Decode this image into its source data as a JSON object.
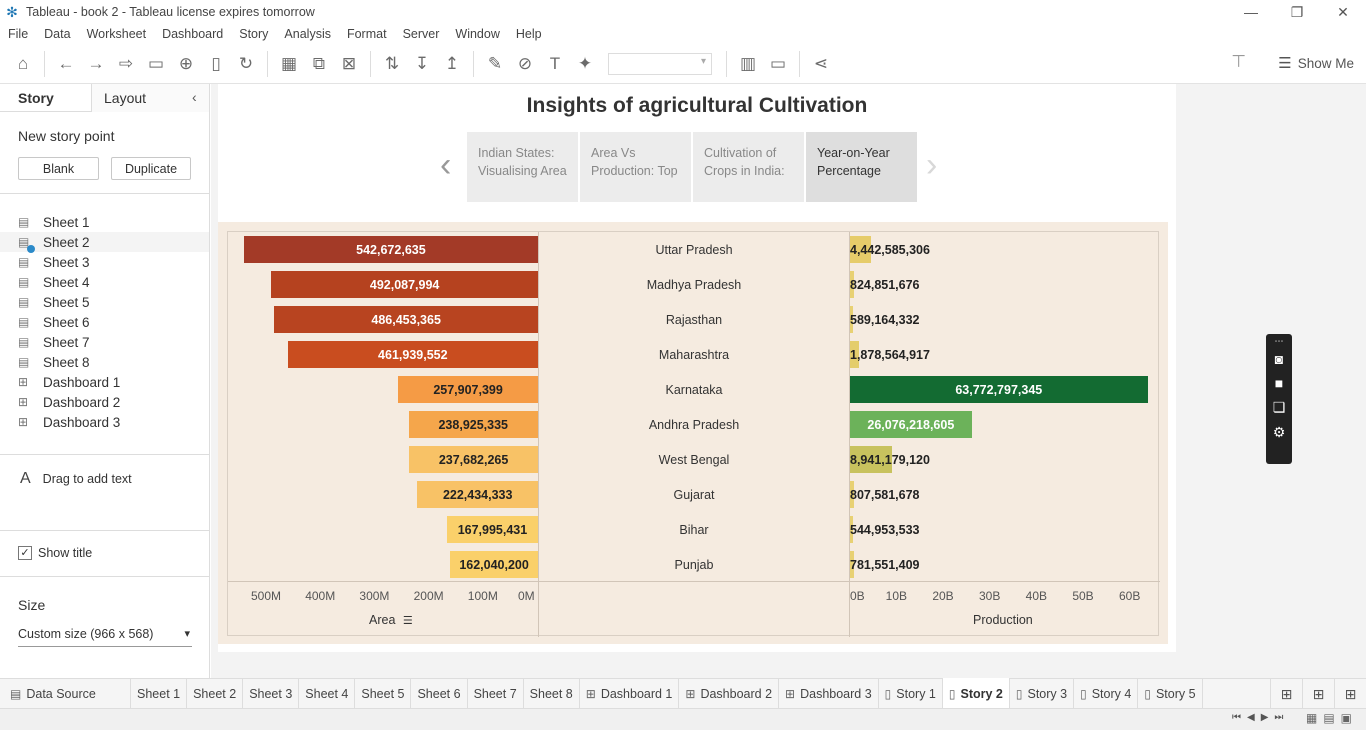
{
  "window": {
    "title": "Tableau - book 2 - Tableau license expires tomorrow"
  },
  "menu": [
    "File",
    "Data",
    "Worksheet",
    "Dashboard",
    "Story",
    "Analysis",
    "Format",
    "Server",
    "Window",
    "Help"
  ],
  "toolbar": {
    "show_me": "Show Me"
  },
  "sidebar": {
    "tab_story": "Story",
    "tab_layout": "Layout",
    "new_story_point": "New story point",
    "blank_button": "Blank",
    "duplicate_button": "Duplicate",
    "sheets": [
      {
        "label": "Sheet 1",
        "type": "sheet"
      },
      {
        "label": "Sheet 2",
        "type": "sheet",
        "selected": true
      },
      {
        "label": "Sheet 3",
        "type": "sheet"
      },
      {
        "label": "Sheet 4",
        "type": "sheet"
      },
      {
        "label": "Sheet 5",
        "type": "sheet"
      },
      {
        "label": "Sheet 6",
        "type": "sheet"
      },
      {
        "label": "Sheet 7",
        "type": "sheet"
      },
      {
        "label": "Sheet 8",
        "type": "sheet"
      },
      {
        "label": "Dashboard 1",
        "type": "dashboard"
      },
      {
        "label": "Dashboard 2",
        "type": "dashboard"
      },
      {
        "label": "Dashboard 3",
        "type": "dashboard"
      }
    ],
    "drag_text": "Drag to add text",
    "show_title": "Show title",
    "size_label": "Size",
    "size_value": "Custom size (966 x 568)"
  },
  "story": {
    "title": "Insights of agricultural Cultivation",
    "points": [
      {
        "line1": "Indian States:",
        "line2": "Visualising Area"
      },
      {
        "line1": "Area Vs",
        "line2": "Production: Top"
      },
      {
        "line1": "Cultivation of",
        "line2": "Crops in India:"
      },
      {
        "line1": "Year-on-Year",
        "line2": "Percentage",
        "active": true
      }
    ]
  },
  "chart_data": {
    "type": "bar",
    "categories": [
      "Uttar Pradesh",
      "Madhya Pradesh",
      "Rajasthan",
      "Maharashtra",
      "Karnataka",
      "Andhra Pradesh",
      "West Bengal",
      "Gujarat",
      "Bihar",
      "Punjab"
    ],
    "series": [
      {
        "name": "Area",
        "values": [
          542672635,
          492087994,
          486453365,
          461939552,
          257907399,
          238925335,
          237682265,
          222434333,
          167995431,
          162040200
        ],
        "labels": [
          "542,672,635",
          "492,087,994",
          "486,453,365",
          "461,939,552",
          "257,907,399",
          "238,925,335",
          "237,682,265",
          "222,434,333",
          "167,995,431",
          "162,040,200"
        ],
        "colors": [
          "#a33a27",
          "#b5421f",
          "#b84420",
          "#c94d1f",
          "#f59b45",
          "#f5a64b",
          "#f8c266",
          "#f8c266",
          "#fad06a",
          "#fad06a"
        ]
      },
      {
        "name": "Production",
        "values": [
          4442585306,
          824851676,
          589164332,
          1878564917,
          63772797345,
          26076218605,
          8941179120,
          807581678,
          544953533,
          781551409
        ],
        "labels": [
          "4,442,585,306",
          "824,851,676",
          "589,164,332",
          "1,878,564,917",
          "63,772,797,345",
          "26,076,218,605",
          "8,941,179,120",
          "807,581,678",
          "544,953,533",
          "781,551,409"
        ],
        "colors": [
          "#e6cc6a",
          "#e8d173",
          "#e8d173",
          "#e4cd6c",
          "#136b32",
          "#6cb25a",
          "#c8c25e",
          "#e8d173",
          "#e8d173",
          "#e8d173"
        ]
      }
    ],
    "area_axis": {
      "title": "Area",
      "range": [
        0,
        550000000
      ],
      "ticks": [
        "500M",
        "400M",
        "300M",
        "200M",
        "100M",
        "0M"
      ],
      "tick_values": [
        500000000,
        400000000,
        300000000,
        200000000,
        100000000,
        0
      ],
      "reversed": true
    },
    "production_axis": {
      "title": "Production",
      "range": [
        0,
        64000000000
      ],
      "ticks": [
        "0B",
        "10B",
        "20B",
        "30B",
        "40B",
        "50B",
        "60B"
      ],
      "tick_values": [
        0,
        10000000000,
        20000000000,
        30000000000,
        40000000000,
        50000000000,
        60000000000
      ]
    }
  },
  "bottom_tabs": [
    {
      "label": "Data Source",
      "icon": "database-icon"
    },
    {
      "label": "Sheet 1"
    },
    {
      "label": "Sheet 2"
    },
    {
      "label": "Sheet 3"
    },
    {
      "label": "Sheet 4"
    },
    {
      "label": "Sheet 5"
    },
    {
      "label": "Sheet 6"
    },
    {
      "label": "Sheet 7"
    },
    {
      "label": "Sheet 8"
    },
    {
      "label": "Dashboard 1",
      "icon": "dashboard-icon"
    },
    {
      "label": "Dashboard 2",
      "icon": "dashboard-icon"
    },
    {
      "label": "Dashboard 3",
      "icon": "dashboard-icon"
    },
    {
      "label": "Story 1",
      "icon": "story-icon"
    },
    {
      "label": "Story 2",
      "icon": "story-icon",
      "active": true
    },
    {
      "label": "Story 3",
      "icon": "story-icon"
    },
    {
      "label": "Story 4",
      "icon": "story-icon"
    },
    {
      "label": "Story 5",
      "icon": "story-icon"
    }
  ]
}
